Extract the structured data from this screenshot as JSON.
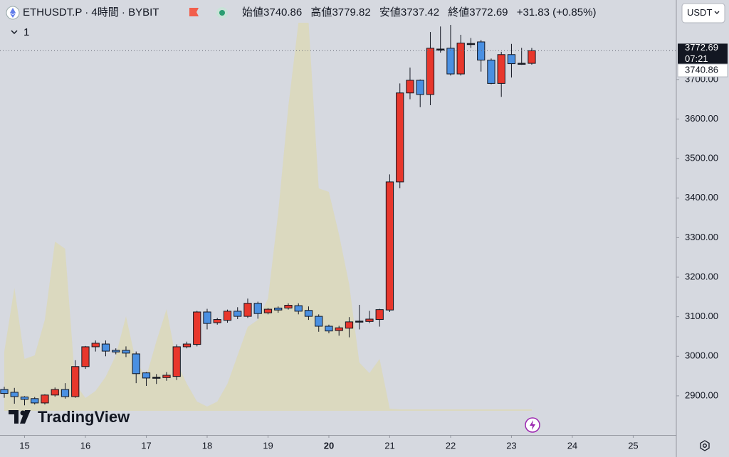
{
  "header": {
    "symbol": "ETHUSDT.P · 4時間 · BYBIT",
    "indicator_count": "1",
    "currency": "USDT",
    "ohlc_labels": [
      "始値",
      "高値",
      "安値",
      "終値"
    ],
    "change": "+31.83 (+0.85%)",
    "countdown": "07:21",
    "brand": "TradingView"
  },
  "chart_data": {
    "type": "candlestick",
    "open": [
      2916,
      2909,
      2897,
      2893,
      2882,
      2902,
      2916,
      2898,
      2974,
      3024,
      3031,
      3015,
      3015,
      3006,
      2958,
      2947,
      2946,
      2949,
      3024,
      3030,
      3112,
      3085,
      3091,
      3114,
      3101,
      3134,
      3110,
      3122,
      3122,
      3128,
      3116,
      3101,
      3076,
      3065,
      3071,
      3089,
      3088,
      3093,
      3117,
      3441,
      3666,
      3698,
      3662,
      3777,
      3779,
      3714,
      3791,
      3795,
      3749,
      3690,
      3763,
      3741,
      3740.86
    ],
    "high": [
      2923,
      2920,
      2899,
      2897,
      2904,
      2921,
      2932,
      2990,
      3026,
      3040,
      3040,
      3020,
      3025,
      3012,
      2960,
      2955,
      2960,
      3030,
      3037,
      3115,
      3120,
      3097,
      3118,
      3124,
      3146,
      3138,
      3122,
      3126,
      3134,
      3134,
      3126,
      3106,
      3080,
      3077,
      3099,
      3130,
      3115,
      3120,
      3460,
      3690,
      3730,
      3700,
      3820,
      3834,
      3838,
      3813,
      3805,
      3800,
      3753,
      3770,
      3790,
      3780,
      3779.82
    ],
    "low": [
      2895,
      2880,
      2876,
      2878,
      2878,
      2898,
      2893,
      2895,
      2968,
      3012,
      3000,
      3005,
      2998,
      2932,
      2925,
      2930,
      2938,
      2940,
      3020,
      3025,
      3068,
      3080,
      3085,
      3094,
      3097,
      3095,
      3106,
      3110,
      3118,
      3106,
      3092,
      3062,
      3058,
      3052,
      3048,
      3068,
      3084,
      3075,
      3112,
      3425,
      3650,
      3630,
      3635,
      3768,
      3710,
      3710,
      3780,
      3720,
      3688,
      3656,
      3705,
      3737,
      3737.42
    ],
    "close": [
      2906,
      2898,
      2891,
      2882,
      2902,
      2916,
      2898,
      2974,
      3024,
      3033,
      3013,
      3011,
      3008,
      2956,
      2945,
      2947,
      2952,
      3024,
      3031,
      3112,
      3083,
      3093,
      3114,
      3101,
      3134,
      3108,
      3119,
      3117,
      3129,
      3114,
      3101,
      3076,
      3064,
      3072,
      3087,
      3089,
      3094,
      3118,
      3441,
      3666,
      3698,
      3662,
      3779,
      3777,
      3714,
      3792,
      3791,
      3749,
      3690,
      3763,
      3740,
      3741,
      3772.69
    ],
    "up_color": "#e8372c",
    "down_color": "#4a90e2",
    "neutral_color": "#222222",
    "volume": {
      "color": "#dcd8b8",
      "values": [
        83,
        173,
        73,
        78,
        128,
        238,
        228,
        38,
        18,
        28,
        48,
        78,
        133,
        68,
        48,
        98,
        143,
        68,
        38,
        13,
        6,
        13,
        38,
        78,
        118,
        128,
        158,
        278,
        428,
        546,
        546,
        313,
        308,
        248,
        178,
        68,
        53,
        73,
        3,
        2,
        2,
        2,
        2,
        2,
        2,
        2,
        2,
        2,
        2,
        2,
        2,
        2,
        2
      ]
    },
    "vlim": [
      0,
      560
    ],
    "ylim": [
      2801,
      3901
    ],
    "yticks": [
      {
        "value": 2900,
        "label": "2900.00"
      },
      {
        "value": 3000,
        "label": "3000.00"
      },
      {
        "value": 3100,
        "label": "3100.00"
      },
      {
        "value": 3200,
        "label": "3200.00"
      },
      {
        "value": 3300,
        "label": "3300.00"
      },
      {
        "value": 3400,
        "label": "3400.00"
      },
      {
        "value": 3500,
        "label": "3500.00"
      },
      {
        "value": 3600,
        "label": "3600.00"
      },
      {
        "value": 3700,
        "label": "3700.00"
      }
    ],
    "xlim": [
      -0.42,
      66.25
    ],
    "xticks": [
      {
        "value": 2,
        "label": "15"
      },
      {
        "value": 8,
        "label": "16"
      },
      {
        "value": 14,
        "label": "17"
      },
      {
        "value": 20,
        "label": "18"
      },
      {
        "value": 26,
        "label": "19"
      },
      {
        "value": 32,
        "label": "20",
        "bold": true
      },
      {
        "value": 38,
        "label": "21"
      },
      {
        "value": 44,
        "label": "22"
      },
      {
        "value": 50,
        "label": "23"
      },
      {
        "value": 56,
        "label": "24"
      },
      {
        "value": 62,
        "label": "25"
      }
    ],
    "grid": false
  }
}
